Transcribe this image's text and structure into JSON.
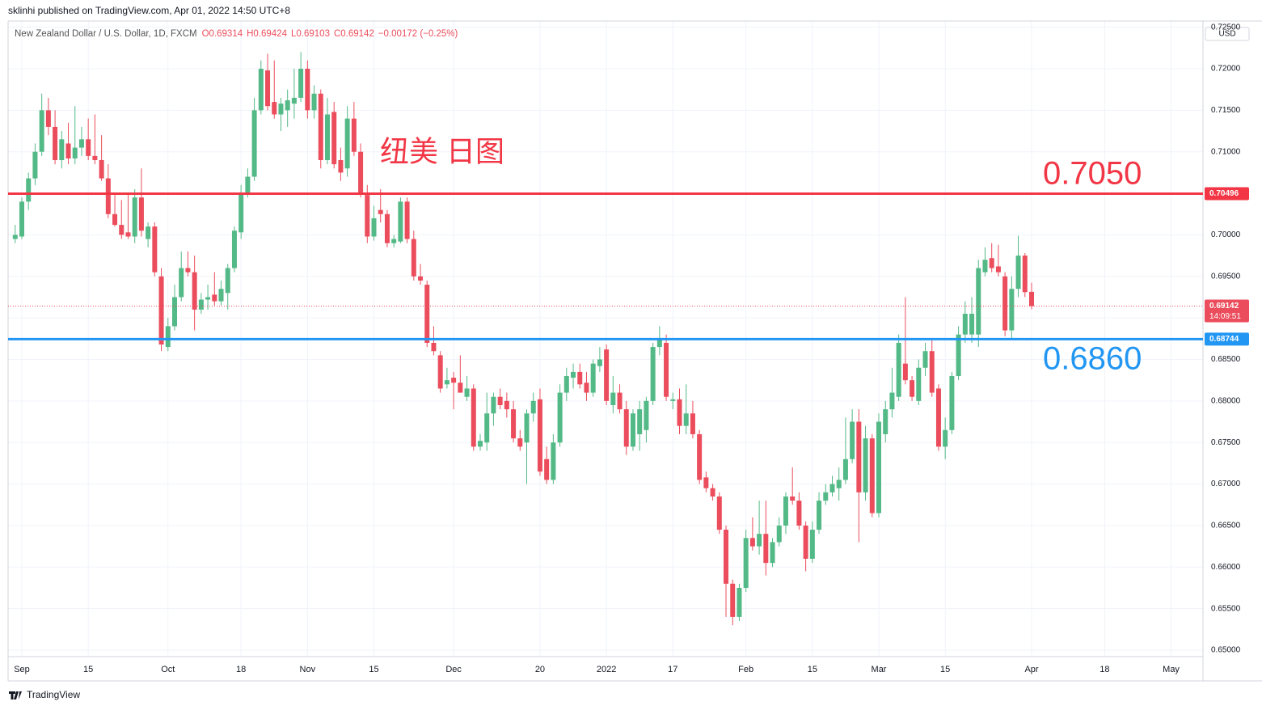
{
  "header": "sklinhi published on TradingView.com, Apr 01, 2022 14:50 UTC+8",
  "footer": "TradingView",
  "chart_data": {
    "type": "candlestick",
    "symbol": "New Zealand Dollar / U.S. Dollar, 1D, FXCM",
    "legend_values": [
      "O0.69314",
      "H0.69424",
      "L0.69103",
      "C0.69142",
      "−0.00172 (−0.25%)"
    ],
    "currency": "USD",
    "annotations": [
      "纽美 日图",
      "0.7050",
      "0.6860"
    ],
    "up_color": "#53b987",
    "down_color": "#eb4d5c",
    "xlim": [
      -1.07,
      178.8
    ],
    "xticks": [
      {
        "value": 1,
        "label": "Sep"
      },
      {
        "value": 11,
        "label": "15"
      },
      {
        "value": 23,
        "label": "Oct"
      },
      {
        "value": 34,
        "label": "18"
      },
      {
        "value": 44,
        "label": "Nov"
      },
      {
        "value": 54,
        "label": "15"
      },
      {
        "value": 66,
        "label": "Dec"
      },
      {
        "value": 79,
        "label": "20"
      },
      {
        "value": 89,
        "label": "2022"
      },
      {
        "value": 99,
        "label": "17"
      },
      {
        "value": 110,
        "label": "Feb"
      },
      {
        "value": 120,
        "label": "15"
      },
      {
        "value": 130,
        "label": "Mar"
      },
      {
        "value": 140,
        "label": "15"
      },
      {
        "value": 153,
        "label": "Apr"
      },
      {
        "value": 164,
        "label": "18"
      },
      {
        "value": 174,
        "label": "May"
      }
    ],
    "ylim": [
      0.64922,
      0.72516
    ],
    "yticks": [
      {
        "value": 0.65,
        "label": "0.65000"
      },
      {
        "value": 0.655,
        "label": "0.65500"
      },
      {
        "value": 0.66,
        "label": "0.66000"
      },
      {
        "value": 0.665,
        "label": "0.66500"
      },
      {
        "value": 0.67,
        "label": "0.67000"
      },
      {
        "value": 0.675,
        "label": "0.67500"
      },
      {
        "value": 0.68,
        "label": "0.68000"
      },
      {
        "value": 0.685,
        "label": "0.68500"
      },
      {
        "value": 0.69,
        "label": "0.69000"
      },
      {
        "value": 0.695,
        "label": "0.69500"
      },
      {
        "value": 0.7,
        "label": "0.70000"
      },
      {
        "value": 0.705,
        "label": "0.70500"
      },
      {
        "value": 0.71,
        "label": "0.71000"
      },
      {
        "value": 0.715,
        "label": "0.71500"
      },
      {
        "value": 0.72,
        "label": "0.72000"
      },
      {
        "value": 0.725,
        "label": "0.72500"
      }
    ],
    "grid": true,
    "hlines": [
      {
        "price": 0.70496,
        "color": "#f23645"
      },
      {
        "price": 0.68744,
        "color": "#2196f3"
      }
    ],
    "last_price": 0.69142,
    "countdown": "14:09:51",
    "ohlc": [
      [
        0.6995,
        0.7012,
        0.699,
        0.7
      ],
      [
        0.6998,
        0.7045,
        0.6995,
        0.704
      ],
      [
        0.704,
        0.7075,
        0.703,
        0.7068
      ],
      [
        0.7068,
        0.711,
        0.706,
        0.71
      ],
      [
        0.71,
        0.717,
        0.7095,
        0.715
      ],
      [
        0.715,
        0.7165,
        0.712,
        0.713
      ],
      [
        0.713,
        0.715,
        0.7085,
        0.709
      ],
      [
        0.709,
        0.7125,
        0.708,
        0.7115
      ],
      [
        0.711,
        0.7135,
        0.7085,
        0.7092
      ],
      [
        0.7092,
        0.7155,
        0.7085,
        0.7105
      ],
      [
        0.7105,
        0.713,
        0.7095,
        0.7115
      ],
      [
        0.7115,
        0.714,
        0.709,
        0.7095
      ],
      [
        0.7095,
        0.7145,
        0.7085,
        0.709
      ],
      [
        0.709,
        0.712,
        0.7065,
        0.7068
      ],
      [
        0.7068,
        0.7085,
        0.702,
        0.7025
      ],
      [
        0.7025,
        0.705,
        0.701,
        0.7012
      ],
      [
        0.7012,
        0.7042,
        0.6995,
        0.7
      ],
      [
        0.7003,
        0.705,
        0.6995,
        0.6998
      ],
      [
        0.6998,
        0.7055,
        0.699,
        0.7045
      ],
      [
        0.7045,
        0.708,
        0.6998,
        0.7005
      ],
      [
        0.6995,
        0.7015,
        0.6985,
        0.701
      ],
      [
        0.701,
        0.7015,
        0.695,
        0.6955
      ],
      [
        0.695,
        0.696,
        0.686,
        0.6868
      ],
      [
        0.6865,
        0.69,
        0.686,
        0.689
      ],
      [
        0.689,
        0.694,
        0.6885,
        0.6925
      ],
      [
        0.6925,
        0.698,
        0.692,
        0.696
      ],
      [
        0.696,
        0.698,
        0.695,
        0.6955
      ],
      [
        0.6955,
        0.6975,
        0.6885,
        0.691
      ],
      [
        0.691,
        0.693,
        0.6905,
        0.6922
      ],
      [
        0.6922,
        0.694,
        0.691,
        0.6925
      ],
      [
        0.6928,
        0.6955,
        0.6915,
        0.692
      ],
      [
        0.692,
        0.6945,
        0.6915,
        0.6935
      ],
      [
        0.693,
        0.6965,
        0.691,
        0.696
      ],
      [
        0.696,
        0.701,
        0.6955,
        0.7005
      ],
      [
        0.7003,
        0.706,
        0.6995,
        0.705
      ],
      [
        0.705,
        0.708,
        0.7045,
        0.707
      ],
      [
        0.707,
        0.7165,
        0.7065,
        0.715
      ],
      [
        0.715,
        0.721,
        0.7145,
        0.72
      ],
      [
        0.7198,
        0.7218,
        0.715,
        0.7155
      ],
      [
        0.716,
        0.721,
        0.714,
        0.7145
      ],
      [
        0.7145,
        0.7165,
        0.7125,
        0.7158
      ],
      [
        0.715,
        0.7175,
        0.713,
        0.7162
      ],
      [
        0.7158,
        0.72,
        0.714,
        0.7165
      ],
      [
        0.7165,
        0.722,
        0.716,
        0.72
      ],
      [
        0.72,
        0.721,
        0.714,
        0.715
      ],
      [
        0.715,
        0.718,
        0.714,
        0.717
      ],
      [
        0.717,
        0.7175,
        0.708,
        0.709
      ],
      [
        0.709,
        0.7165,
        0.7085,
        0.7145
      ],
      [
        0.7148,
        0.716,
        0.708,
        0.7085
      ],
      [
        0.709,
        0.7105,
        0.7065,
        0.7075
      ],
      [
        0.708,
        0.7155,
        0.707,
        0.714
      ],
      [
        0.714,
        0.716,
        0.7095,
        0.71
      ],
      [
        0.71,
        0.711,
        0.7045,
        0.705
      ],
      [
        0.7048,
        0.706,
        0.699,
        0.6998
      ],
      [
        0.6998,
        0.7035,
        0.6993,
        0.702
      ],
      [
        0.703,
        0.7055,
        0.7015,
        0.7025
      ],
      [
        0.7025,
        0.703,
        0.6985,
        0.699
      ],
      [
        0.699,
        0.7,
        0.6985,
        0.6995
      ],
      [
        0.6992,
        0.7045,
        0.699,
        0.704
      ],
      [
        0.704,
        0.7045,
        0.699,
        0.6995
      ],
      [
        0.6995,
        0.7005,
        0.6945,
        0.695
      ],
      [
        0.695,
        0.6965,
        0.694,
        0.6945
      ],
      [
        0.694,
        0.6945,
        0.6865,
        0.687
      ],
      [
        0.687,
        0.689,
        0.6855,
        0.686
      ],
      [
        0.6855,
        0.686,
        0.681,
        0.6815
      ],
      [
        0.682,
        0.684,
        0.6815,
        0.6825
      ],
      [
        0.6828,
        0.6835,
        0.679,
        0.6822
      ],
      [
        0.6822,
        0.6855,
        0.681,
        0.681
      ],
      [
        0.6805,
        0.683,
        0.68,
        0.6815
      ],
      [
        0.6815,
        0.682,
        0.674,
        0.6745
      ],
      [
        0.6745,
        0.676,
        0.674,
        0.6752
      ],
      [
        0.675,
        0.681,
        0.674,
        0.6785
      ],
      [
        0.6785,
        0.681,
        0.677,
        0.6805
      ],
      [
        0.6805,
        0.6815,
        0.679,
        0.6795
      ],
      [
        0.68,
        0.681,
        0.678,
        0.679
      ],
      [
        0.679,
        0.68,
        0.675,
        0.6755
      ],
      [
        0.6755,
        0.6765,
        0.674,
        0.6745
      ],
      [
        0.675,
        0.679,
        0.67,
        0.6785
      ],
      [
        0.6785,
        0.681,
        0.6775,
        0.68
      ],
      [
        0.6802,
        0.6815,
        0.671,
        0.6715
      ],
      [
        0.673,
        0.6745,
        0.67,
        0.6705
      ],
      [
        0.6705,
        0.676,
        0.67,
        0.675
      ],
      [
        0.675,
        0.682,
        0.6745,
        0.681
      ],
      [
        0.681,
        0.684,
        0.68,
        0.683
      ],
      [
        0.6828,
        0.6845,
        0.6815,
        0.6835
      ],
      [
        0.6835,
        0.6845,
        0.6815,
        0.682
      ],
      [
        0.6822,
        0.6835,
        0.68,
        0.681
      ],
      [
        0.681,
        0.685,
        0.6805,
        0.6845
      ],
      [
        0.6842,
        0.6865,
        0.6835,
        0.685
      ],
      [
        0.6862,
        0.6868,
        0.6795,
        0.68
      ],
      [
        0.6795,
        0.683,
        0.6785,
        0.681
      ],
      [
        0.681,
        0.682,
        0.6785,
        0.679
      ],
      [
        0.679,
        0.68,
        0.6735,
        0.6745
      ],
      [
        0.6745,
        0.679,
        0.674,
        0.6785
      ],
      [
        0.676,
        0.68,
        0.674,
        0.679
      ],
      [
        0.6765,
        0.6805,
        0.675,
        0.68
      ],
      [
        0.68,
        0.687,
        0.6795,
        0.6865
      ],
      [
        0.6865,
        0.689,
        0.6855,
        0.6875
      ],
      [
        0.687,
        0.688,
        0.68,
        0.6805
      ],
      [
        0.68,
        0.681,
        0.679,
        0.6802
      ],
      [
        0.6802,
        0.6815,
        0.676,
        0.677
      ],
      [
        0.677,
        0.682,
        0.676,
        0.6785
      ],
      [
        0.6785,
        0.68,
        0.6755,
        0.676
      ],
      [
        0.676,
        0.6765,
        0.67,
        0.6705
      ],
      [
        0.6708,
        0.6715,
        0.669,
        0.6695
      ],
      [
        0.6695,
        0.67,
        0.668,
        0.6685
      ],
      [
        0.6685,
        0.669,
        0.664,
        0.6645
      ],
      [
        0.6645,
        0.665,
        0.654,
        0.658
      ],
      [
        0.658,
        0.6585,
        0.653,
        0.654
      ],
      [
        0.654,
        0.658,
        0.6535,
        0.6575
      ],
      [
        0.6575,
        0.6645,
        0.657,
        0.6635
      ],
      [
        0.6635,
        0.666,
        0.662,
        0.6625
      ],
      [
        0.6625,
        0.668,
        0.6615,
        0.664
      ],
      [
        0.664,
        0.668,
        0.659,
        0.6605
      ],
      [
        0.6605,
        0.6635,
        0.66,
        0.663
      ],
      [
        0.663,
        0.666,
        0.6625,
        0.665
      ],
      [
        0.665,
        0.669,
        0.664,
        0.6685
      ],
      [
        0.6685,
        0.672,
        0.6675,
        0.668
      ],
      [
        0.668,
        0.669,
        0.6645,
        0.665
      ],
      [
        0.665,
        0.6655,
        0.6595,
        0.661
      ],
      [
        0.661,
        0.6655,
        0.6605,
        0.6645
      ],
      [
        0.6645,
        0.669,
        0.664,
        0.668
      ],
      [
        0.668,
        0.67,
        0.6675,
        0.669
      ],
      [
        0.669,
        0.671,
        0.6685,
        0.67
      ],
      [
        0.6695,
        0.672,
        0.668,
        0.6705
      ],
      [
        0.6705,
        0.678,
        0.67,
        0.673
      ],
      [
        0.673,
        0.679,
        0.6725,
        0.6775
      ],
      [
        0.6775,
        0.679,
        0.663,
        0.669
      ],
      [
        0.669,
        0.677,
        0.668,
        0.6755
      ],
      [
        0.6755,
        0.676,
        0.666,
        0.6665
      ],
      [
        0.6665,
        0.6785,
        0.666,
        0.6775
      ],
      [
        0.676,
        0.68,
        0.675,
        0.679
      ],
      [
        0.679,
        0.684,
        0.678,
        0.681
      ],
      [
        0.6805,
        0.688,
        0.68,
        0.687
      ],
      [
        0.6845,
        0.6925,
        0.682,
        0.6825
      ],
      [
        0.6825,
        0.683,
        0.68,
        0.6805
      ],
      [
        0.68,
        0.685,
        0.6795,
        0.684
      ],
      [
        0.684,
        0.687,
        0.683,
        0.686
      ],
      [
        0.686,
        0.6875,
        0.6805,
        0.681
      ],
      [
        0.6815,
        0.682,
        0.674,
        0.6745
      ],
      [
        0.6745,
        0.678,
        0.673,
        0.6765
      ],
      [
        0.6765,
        0.6835,
        0.676,
        0.683
      ],
      [
        0.683,
        0.689,
        0.6825,
        0.688
      ],
      [
        0.688,
        0.692,
        0.687,
        0.6905
      ],
      [
        0.688,
        0.6925,
        0.687,
        0.6905
      ],
      [
        0.688,
        0.697,
        0.6865,
        0.696
      ],
      [
        0.6955,
        0.6985,
        0.695,
        0.697
      ],
      [
        0.6972,
        0.699,
        0.6955,
        0.696
      ],
      [
        0.6962,
        0.6988,
        0.695,
        0.6955
      ],
      [
        0.695,
        0.6955,
        0.6878,
        0.6885
      ],
      [
        0.6885,
        0.695,
        0.6875,
        0.6935
      ],
      [
        0.6935,
        0.6999,
        0.6925,
        0.6975
      ],
      [
        0.6975,
        0.6978,
        0.6925,
        0.6931
      ],
      [
        0.69314,
        0.69424,
        0.69103,
        0.69142
      ]
    ]
  }
}
